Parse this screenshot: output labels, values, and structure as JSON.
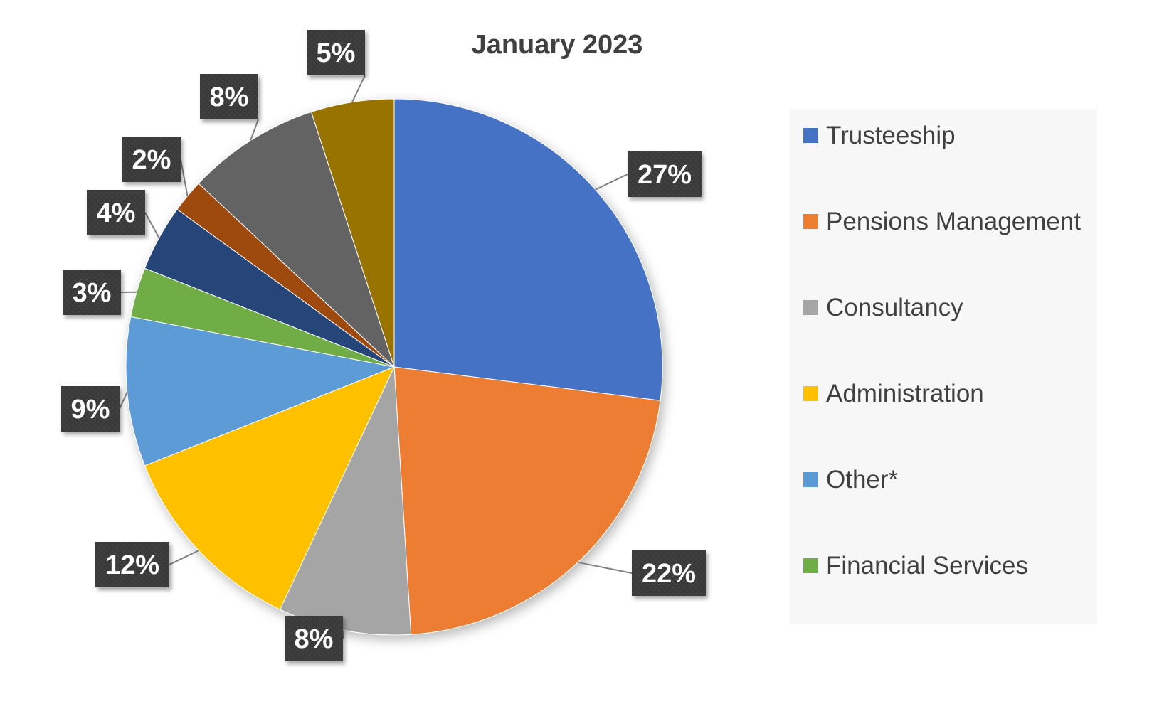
{
  "chart_data": {
    "type": "pie",
    "title": "January 2023",
    "slices": [
      {
        "name": "Trusteeship",
        "value": 27,
        "label": "27%",
        "color": "#4472C4"
      },
      {
        "name": "Pensions Management",
        "value": 22,
        "label": "22%",
        "color": "#ED7D31"
      },
      {
        "name": "Consultancy",
        "value": 8,
        "label": "8%",
        "color": "#A5A5A5"
      },
      {
        "name": "Administration",
        "value": 12,
        "label": "12%",
        "color": "#FFC000"
      },
      {
        "name": "Other*",
        "value": 9,
        "label": "9%",
        "color": "#5B9BD5"
      },
      {
        "name": "Financial Services",
        "value": 3,
        "label": "3%",
        "color": "#70AD47"
      },
      {
        "name": "",
        "value": 4,
        "label": "4%",
        "color": "#264478"
      },
      {
        "name": "",
        "value": 2,
        "label": "2%",
        "color": "#9E480E"
      },
      {
        "name": "",
        "value": 8,
        "label": "8%",
        "color": "#636363"
      },
      {
        "name": "",
        "value": 5,
        "label": "5%",
        "color": "#997300"
      }
    ],
    "legend": [
      "Trusteeship",
      "Pensions Management",
      "Consultancy",
      "Administration",
      "Other*",
      "Financial Services"
    ],
    "legend_position": "right"
  }
}
